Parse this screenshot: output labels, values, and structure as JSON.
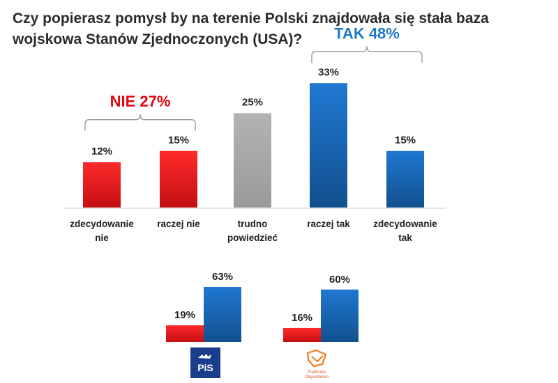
{
  "title": "Czy popierasz pomysł by na terenie Polski znajdowała się stała baza wojskowa Stanów Zjednoczonych (USA)?",
  "colors": {
    "red": "#e8141b",
    "gray": "#a6a6a6",
    "blue": "#1a66b8",
    "nie": "#e30613",
    "tak": "#1e78c8"
  },
  "chart_data": [
    {
      "type": "bar",
      "title": "Czy popierasz pomysł by na terenie Polski znajdowała się stała baza wojskowa Stanów Zjednoczonych (USA)?",
      "categories": [
        [
          "zdecydowanie",
          "nie"
        ],
        [
          "raczej nie"
        ],
        [
          "trudno",
          "powiedzieć"
        ],
        [
          "raczej tak"
        ],
        [
          "zdecydowanie",
          "tak"
        ]
      ],
      "values": [
        12,
        15,
        25,
        33,
        15
      ],
      "value_labels": [
        "12%",
        "15%",
        "25%",
        "33%",
        "15%"
      ],
      "bar_colors": [
        "red",
        "red",
        "gray",
        "blue",
        "blue"
      ],
      "groups": [
        {
          "label": "NIE 27%",
          "value": 27,
          "color": "nie",
          "range": [
            0,
            1
          ]
        },
        {
          "label": "TAK 48%",
          "value": 48,
          "color": "tak",
          "range": [
            3,
            4
          ]
        }
      ],
      "ylim": [
        0,
        35
      ],
      "xlabel": "",
      "ylabel": ""
    },
    {
      "type": "bar",
      "title": "",
      "categories": [
        "PiS",
        "Platforma Obywatelska"
      ],
      "series": [
        {
          "name": "NIE",
          "color": "red",
          "values": [
            19,
            16
          ],
          "value_labels": [
            "19%",
            "16%"
          ]
        },
        {
          "name": "TAK",
          "color": "blue",
          "values": [
            63,
            60
          ],
          "value_labels": [
            "63%",
            "60%"
          ]
        }
      ],
      "ylim": [
        0,
        63
      ],
      "logos": [
        "PiS",
        "Platforma Obywatelska"
      ]
    }
  ]
}
